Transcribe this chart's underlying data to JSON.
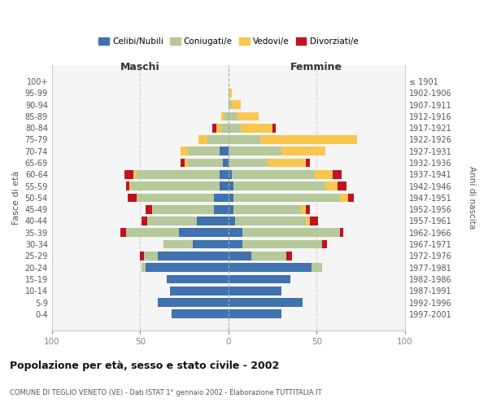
{
  "age_groups": [
    "100+",
    "95-99",
    "90-94",
    "85-89",
    "80-84",
    "75-79",
    "70-74",
    "65-69",
    "60-64",
    "55-59",
    "50-54",
    "45-49",
    "40-44",
    "35-39",
    "30-34",
    "25-29",
    "20-24",
    "15-19",
    "10-14",
    "5-9",
    "0-4"
  ],
  "birth_years": [
    "≤ 1901",
    "1902-1906",
    "1907-1911",
    "1912-1916",
    "1917-1921",
    "1922-1926",
    "1927-1931",
    "1932-1936",
    "1937-1941",
    "1942-1946",
    "1947-1951",
    "1952-1956",
    "1957-1961",
    "1962-1966",
    "1967-1971",
    "1972-1976",
    "1977-1981",
    "1982-1986",
    "1987-1991",
    "1992-1996",
    "1997-2001"
  ],
  "colors": {
    "celibi_nubili": "#3f72af",
    "coniugati": "#b5c99a",
    "vedovi": "#f9c74f",
    "divorziati": "#c1121f"
  },
  "xlim": 100,
  "title": "Popolazione per età, sesso e stato civile - 2002",
  "subtitle": "COMUNE DI TEGLIO VENETO (VE) - Dati ISTAT 1° gennaio 2002 - Elaborazione TUTTITALIA.IT",
  "ylabel_left": "Fasce di età",
  "ylabel_right": "Anni di nascita",
  "header_left": "Maschi",
  "header_right": "Femmine",
  "legend_labels": [
    "Celibi/Nubili",
    "Coniugati/e",
    "Vedovi/e",
    "Divorziati/e"
  ],
  "bg_color": "#ffffff",
  "bar_height": 0.75,
  "male_celibi": [
    0,
    0,
    0,
    0,
    0,
    0,
    5,
    3,
    5,
    5,
    8,
    8,
    18,
    28,
    20,
    40,
    47,
    35,
    33,
    40,
    32
  ],
  "male_coniugati": [
    0,
    0,
    0,
    2,
    4,
    12,
    18,
    20,
    47,
    50,
    44,
    35,
    28,
    30,
    17,
    8,
    2,
    0,
    0,
    0,
    0
  ],
  "male_vedovi": [
    0,
    0,
    0,
    2,
    3,
    5,
    4,
    2,
    2,
    1,
    0,
    0,
    0,
    0,
    0,
    0,
    0,
    0,
    0,
    0,
    0
  ],
  "male_divorziati": [
    0,
    0,
    0,
    0,
    2,
    0,
    0,
    2,
    5,
    2,
    5,
    4,
    3,
    3,
    0,
    2,
    0,
    0,
    0,
    0,
    0
  ],
  "female_nubili": [
    0,
    0,
    0,
    0,
    0,
    0,
    0,
    0,
    2,
    3,
    3,
    3,
    4,
    8,
    8,
    13,
    47,
    35,
    30,
    42,
    30
  ],
  "female_coniugate": [
    0,
    0,
    2,
    5,
    7,
    18,
    30,
    22,
    47,
    52,
    60,
    38,
    40,
    55,
    45,
    20,
    6,
    0,
    0,
    0,
    0
  ],
  "female_vedove": [
    0,
    2,
    5,
    12,
    18,
    55,
    25,
    22,
    10,
    7,
    5,
    3,
    2,
    0,
    0,
    0,
    0,
    0,
    0,
    0,
    0
  ],
  "female_divorziate": [
    0,
    0,
    0,
    0,
    2,
    0,
    0,
    2,
    5,
    5,
    3,
    2,
    5,
    2,
    3,
    3,
    0,
    0,
    0,
    0,
    0
  ]
}
